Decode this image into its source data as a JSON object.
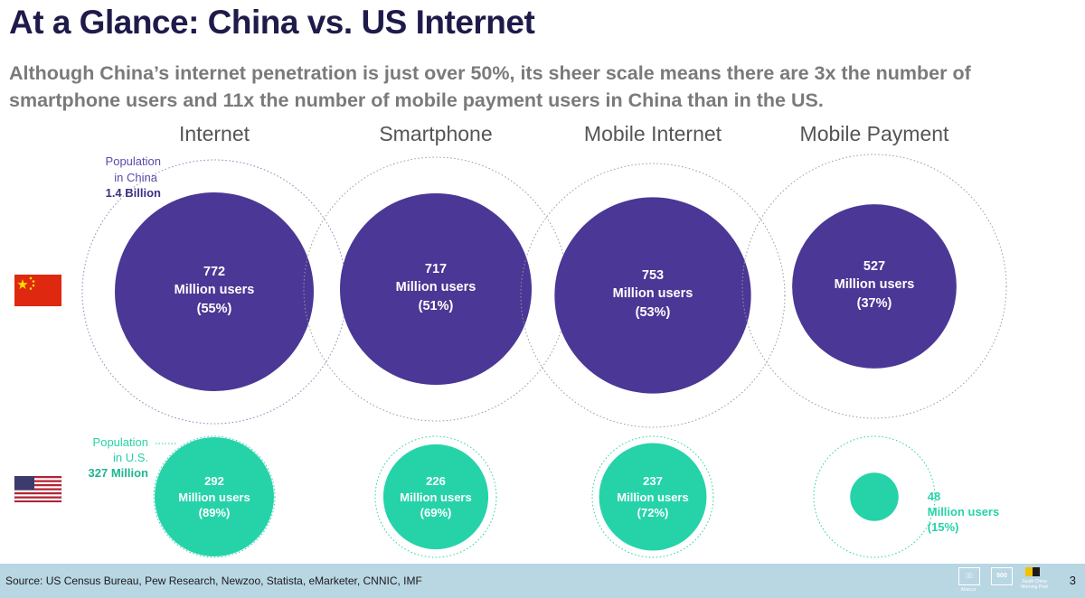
{
  "title": "At a Glance: China vs. US Internet",
  "subtitle": "Although China’s internet penetration is just over 50%, its sheer scale means there are 3x the number of smartphone users and 11x the number of mobile payment users in China than in the US.",
  "colors": {
    "china": "#4b3795",
    "us": "#26d3a9",
    "heading": "#1e1b4b",
    "label": "#555555"
  },
  "chart_data": {
    "type": "bubble",
    "categories": [
      "Internet",
      "Smartphone",
      "Mobile Internet",
      "Mobile Payment"
    ],
    "unit_label": "Million users",
    "series": [
      {
        "name": "China",
        "population_label": [
          "Population",
          "in China"
        ],
        "population_value": "1.4 Billion",
        "values": [
          772,
          717,
          753,
          527
        ],
        "percents": [
          "(55%)",
          "(51%)",
          "(53%)",
          "(37%)"
        ]
      },
      {
        "name": "US",
        "population_label": [
          "Population",
          "in U.S."
        ],
        "population_value": "327 Million",
        "values": [
          292,
          226,
          237,
          48
        ],
        "percents": [
          "(89%)",
          "(69%)",
          "(72%)",
          "(15%)"
        ]
      }
    ]
  },
  "footer": {
    "source": "Source: US Census Bureau, Pew Research, Newzoo, Statista, eMarketer, CNNIC, IMF",
    "logo1": "Abacus",
    "logo2": "500",
    "logo3": "South China Morning Post",
    "page": "3"
  }
}
